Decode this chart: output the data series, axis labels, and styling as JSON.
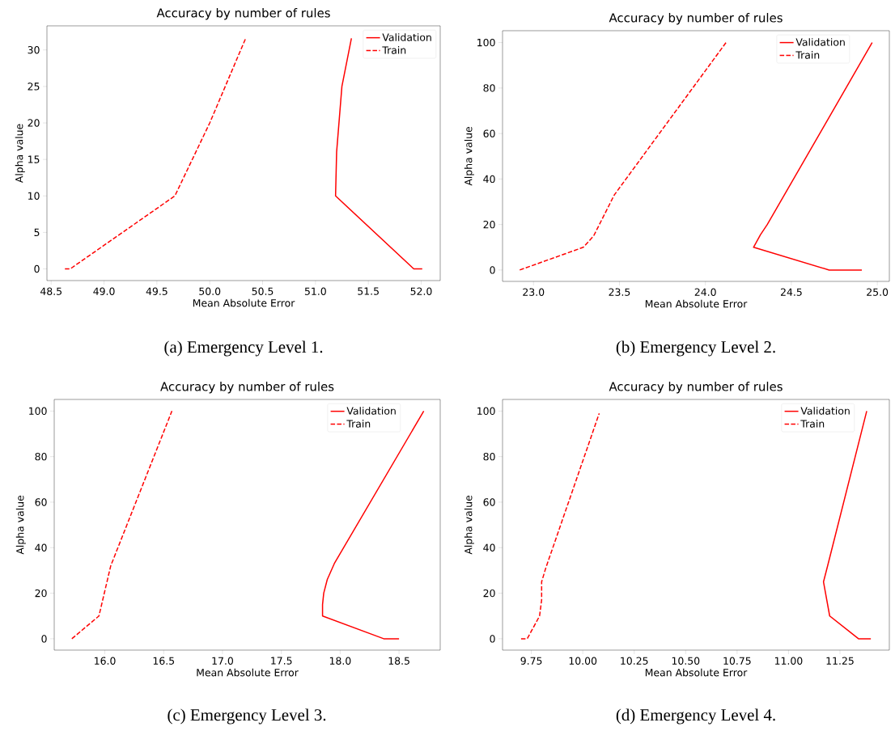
{
  "chart_data": [
    {
      "type": "line",
      "title": "Accuracy by number of rules",
      "xlabel": "Mean Absolute Error",
      "ylabel": "Alpha value",
      "legend": "top right",
      "xlim": [
        48.46,
        52.18
      ],
      "ylim": [
        -1.6,
        33.3
      ],
      "xticks": [
        {
          "value": 48.5,
          "label": "48.5"
        },
        {
          "value": 49,
          "label": "49.0"
        },
        {
          "value": 49.5,
          "label": "49.5"
        },
        {
          "value": 50,
          "label": "50.0"
        },
        {
          "value": 50.5,
          "label": "50.5"
        },
        {
          "value": 51,
          "label": "51.0"
        },
        {
          "value": 51.5,
          "label": "51.5"
        },
        {
          "value": 52,
          "label": "52.0"
        }
      ],
      "yticks": [
        0,
        5,
        10,
        15,
        20,
        25,
        30
      ],
      "series": [
        {
          "name": "Validation",
          "color": "#ff0000",
          "line_style": "solid",
          "x": [
            52.01,
            51.93,
            51.19,
            51.2,
            51.25,
            51.34
          ],
          "values": [
            0,
            0,
            10,
            16,
            25,
            31.6
          ]
        },
        {
          "name": "Train",
          "color": "#ff0000",
          "line_style": "dashed",
          "x": [
            48.63,
            48.68,
            49.67,
            50.0,
            50.34
          ],
          "values": [
            0,
            0,
            10,
            20,
            31.6
          ]
        }
      ],
      "annotations": [
        "(a) Emergency Level 1."
      ]
    },
    {
      "type": "line",
      "title": "Accuracy by number of rules",
      "xlabel": "Mean Absolute Error",
      "ylabel": "Alpha value",
      "legend": "top right",
      "xlim": [
        22.82,
        25.07
      ],
      "ylim": [
        -5,
        105.2
      ],
      "xticks": [
        {
          "value": 23,
          "label": "23.0"
        },
        {
          "value": 23.5,
          "label": "23.5"
        },
        {
          "value": 24,
          "label": "24.0"
        },
        {
          "value": 24.5,
          "label": "24.5"
        },
        {
          "value": 25,
          "label": "25.0"
        }
      ],
      "yticks": [
        0,
        20,
        40,
        60,
        80,
        100
      ],
      "series": [
        {
          "name": "Validation",
          "color": "#ff0000",
          "line_style": "solid",
          "x": [
            24.91,
            24.72,
            24.28,
            24.32,
            24.36,
            24.97
          ],
          "values": [
            0,
            0,
            10,
            15.5,
            20,
            100
          ]
        },
        {
          "name": "Train",
          "color": "#ff0000",
          "line_style": "dashed",
          "x": [
            22.92,
            23.29,
            23.35,
            23.47,
            24.12
          ],
          "values": [
            0,
            10,
            15,
            33,
            100
          ]
        }
      ],
      "annotations": [
        "(b) Emergency Level 2."
      ]
    },
    {
      "type": "line",
      "title": "Accuracy by number of rules",
      "xlabel": "Mean Absolute Error",
      "ylabel": "Alpha value",
      "legend": "top right",
      "xlim": [
        15.57,
        18.85
      ],
      "ylim": [
        -5,
        105.1
      ],
      "xticks": [
        {
          "value": 16,
          "label": "16.0"
        },
        {
          "value": 16.5,
          "label": "16.5"
        },
        {
          "value": 17,
          "label": "17.0"
        },
        {
          "value": 17.5,
          "label": "17.5"
        },
        {
          "value": 18,
          "label": "18.0"
        },
        {
          "value": 18.5,
          "label": "18.5"
        }
      ],
      "yticks": [
        0,
        20,
        40,
        60,
        80,
        100
      ],
      "series": [
        {
          "name": "Validation",
          "color": "#ff0000",
          "line_style": "solid",
          "x": [
            18.5,
            18.37,
            17.85,
            17.85,
            17.86,
            17.89,
            17.95,
            18.71
          ],
          "values": [
            0,
            0,
            10,
            15,
            20,
            26,
            33,
            100
          ]
        },
        {
          "name": "Train",
          "color": "#ff0000",
          "line_style": "dashed",
          "x": [
            15.72,
            15.95,
            16.05,
            16.57
          ],
          "values": [
            0,
            10,
            32,
            100
          ]
        }
      ],
      "annotations": [
        "(c) Emergency Level 3."
      ]
    },
    {
      "type": "line",
      "title": "Accuracy by number of rules",
      "xlabel": "Mean Absolute Error",
      "ylabel": "Alpha value",
      "legend": "top right",
      "xlim": [
        9.61,
        11.49
      ],
      "ylim": [
        -5,
        105.1
      ],
      "xticks": [
        {
          "value": 9.75,
          "label": "9.75"
        },
        {
          "value": 10,
          "label": "10.00"
        },
        {
          "value": 10.25,
          "label": "10.25"
        },
        {
          "value": 10.5,
          "label": "10.50"
        },
        {
          "value": 10.75,
          "label": "10.75"
        },
        {
          "value": 11,
          "label": "11.00"
        },
        {
          "value": 11.25,
          "label": "11.25"
        }
      ],
      "yticks": [
        0,
        20,
        40,
        60,
        80,
        100
      ],
      "series": [
        {
          "name": "Validation",
          "color": "#ff0000",
          "line_style": "solid",
          "x": [
            11.4,
            11.34,
            11.2,
            11.17,
            11.19,
            11.38
          ],
          "values": [
            0,
            0,
            10,
            25,
            32,
            100
          ]
        },
        {
          "name": "Train",
          "color": "#ff0000",
          "line_style": "dashed",
          "x": [
            9.7,
            9.73,
            9.79,
            9.8,
            9.8,
            9.82,
            10.08
          ],
          "values": [
            0,
            0,
            10,
            17,
            25,
            31,
            99
          ]
        }
      ],
      "annotations": [
        "(d) Emergency Level 4."
      ]
    }
  ]
}
